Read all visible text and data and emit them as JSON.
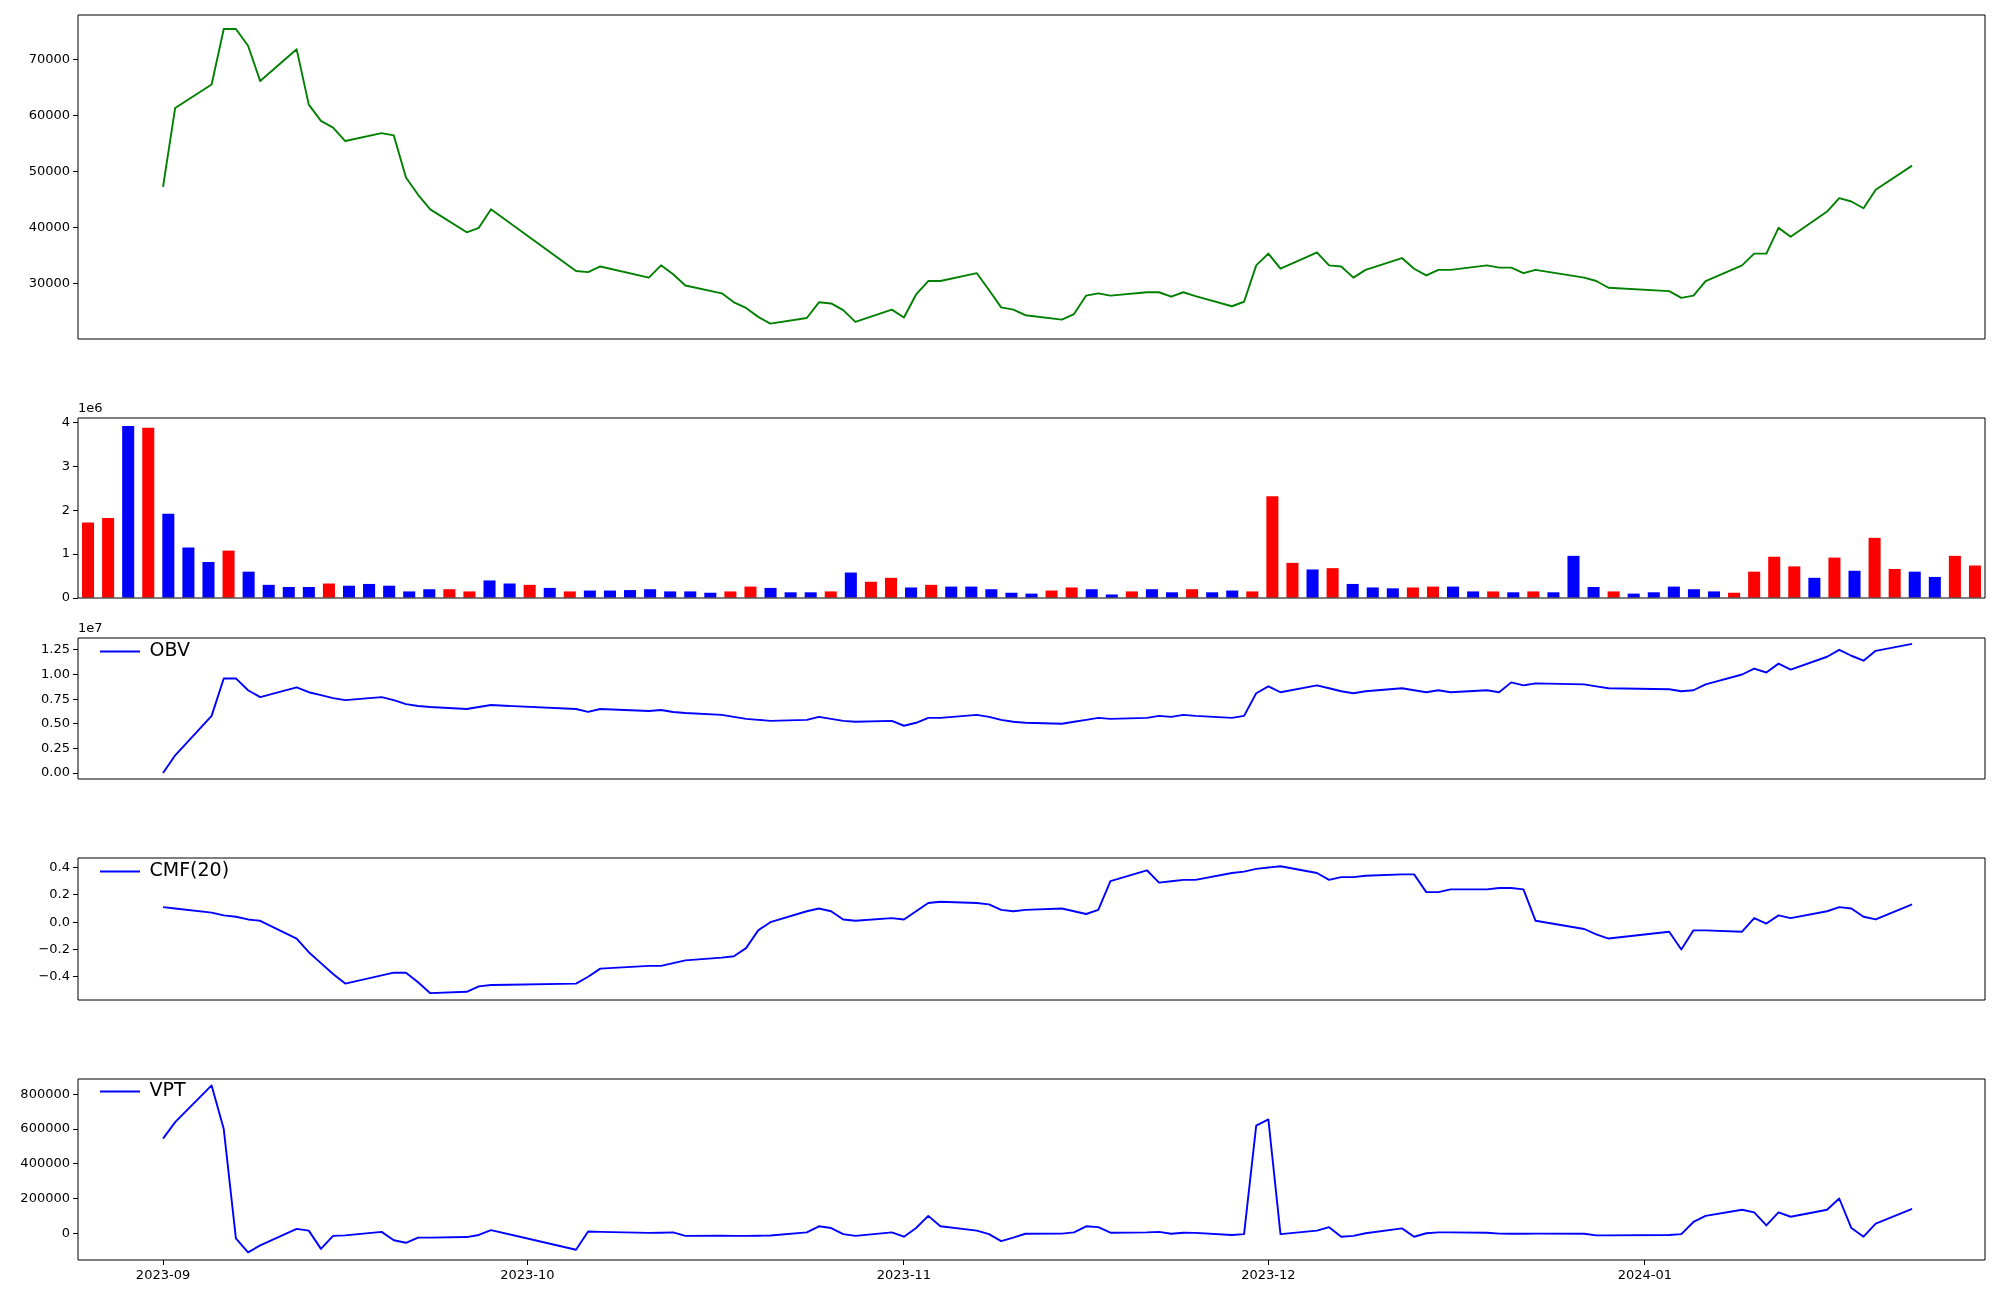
{
  "chart_data": [
    {
      "type": "line",
      "xlim": [
        "2023-08-25",
        "2024-01-29"
      ],
      "ylim": [
        20050,
        77900
      ],
      "yticks": [
        30000,
        40000,
        50000,
        60000,
        70000
      ],
      "tick_labels": "y",
      "x": [
        "2023-09-01",
        "2023-09-02",
        "2023-09-05",
        "2023-09-06",
        "2023-09-07",
        "2023-09-08",
        "2023-09-09",
        "2023-09-12",
        "2023-09-13",
        "2023-09-14",
        "2023-09-15",
        "2023-09-16",
        "2023-09-19",
        "2023-09-20",
        "2023-09-21",
        "2023-09-22",
        "2023-09-23",
        "2023-09-26",
        "2023-09-27",
        "2023-09-28",
        "2023-10-05",
        "2023-10-06",
        "2023-10-07",
        "2023-10-11",
        "2023-10-12",
        "2023-10-13",
        "2023-10-14",
        "2023-10-17",
        "2023-10-18",
        "2023-10-19",
        "2023-10-20",
        "2023-10-21",
        "2023-10-24",
        "2023-10-25",
        "2023-10-26",
        "2023-10-27",
        "2023-10-28",
        "2023-10-31",
        "2023-11-01",
        "2023-11-02",
        "2023-11-03",
        "2023-11-04",
        "2023-11-07",
        "2023-11-08",
        "2023-11-09",
        "2023-11-10",
        "2023-11-11",
        "2023-11-14",
        "2023-11-15",
        "2023-11-16",
        "2023-11-17",
        "2023-11-18",
        "2023-11-21",
        "2023-11-22",
        "2023-11-23",
        "2023-11-24",
        "2023-11-25",
        "2023-11-28",
        "2023-11-29",
        "2023-11-30",
        "2023-12-01",
        "2023-12-02",
        "2023-12-05",
        "2023-12-06",
        "2023-12-07",
        "2023-12-08",
        "2023-12-09",
        "2023-12-12",
        "2023-12-13",
        "2023-12-14",
        "2023-12-15",
        "2023-12-16",
        "2023-12-19",
        "2023-12-20",
        "2023-12-21",
        "2023-12-22",
        "2023-12-23",
        "2023-12-27",
        "2023-12-28",
        "2023-12-29",
        "2024-01-03",
        "2024-01-04",
        "2024-01-05",
        "2024-01-06",
        "2024-01-09",
        "2024-01-10",
        "2024-01-11",
        "2024-01-12",
        "2024-01-13",
        "2024-01-16",
        "2024-01-17",
        "2024-01-18",
        "2024-01-19",
        "2024-01-20",
        "2024-01-23"
      ],
      "series": [
        {
          "color": "#008000",
          "values": [
            47200,
            61300,
            65500,
            75400,
            75400,
            72400,
            66100,
            71800,
            61900,
            59000,
            57800,
            55400,
            56800,
            56400,
            48900,
            45800,
            43200,
            39100,
            39900,
            43200,
            32200,
            32000,
            33000,
            31000,
            33200,
            31600,
            29600,
            28200,
            26600,
            25600,
            24000,
            22800,
            23800,
            26600,
            26400,
            25200,
            23100,
            25300,
            23900,
            28000,
            30400,
            30400,
            31800,
            28800,
            25700,
            25300,
            24300,
            23500,
            24500,
            27800,
            28200,
            27800,
            28400,
            28400,
            27600,
            28400,
            27700,
            25900,
            26700,
            33200,
            35300,
            32600,
            35500,
            33200,
            33000,
            31000,
            32400,
            34500,
            32600,
            31400,
            32400,
            32400,
            33200,
            32800,
            32800,
            31800,
            32400,
            31000,
            30400,
            29200,
            28600,
            27400,
            27800,
            30400,
            33200,
            35300,
            35300,
            39900,
            38300,
            42800,
            45200,
            44600,
            43400,
            46700,
            51000
          ]
        }
      ]
    },
    {
      "type": "bar",
      "tick_labels": "y",
      "ylim": [
        0,
        4.1
      ],
      "yticks": [
        0,
        1,
        2,
        3,
        4
      ],
      "annotations": [
        "1e6"
      ],
      "categories": [
        null,
        null,
        null,
        null,
        null,
        null,
        null,
        null,
        null,
        null,
        null,
        null,
        null,
        null,
        null,
        null,
        null,
        null,
        null,
        null,
        null,
        null,
        null,
        null,
        null,
        null,
        null,
        null,
        null,
        null,
        null,
        null,
        null,
        null,
        null,
        null,
        null,
        null,
        null,
        null,
        null,
        null,
        null,
        null,
        null,
        null,
        null,
        null,
        null,
        null,
        null,
        null,
        null,
        null,
        null,
        null,
        null,
        null,
        null,
        null,
        null,
        null,
        null,
        null,
        null,
        null,
        null,
        null,
        null,
        null,
        null,
        null,
        null,
        null,
        null,
        null,
        null,
        null,
        null,
        null,
        null,
        null,
        null,
        null,
        null,
        null,
        null,
        null,
        null,
        null,
        null,
        null,
        null,
        null,
        null
      ],
      "values": [
        1.72,
        1.82,
        3.92,
        3.88,
        1.92,
        1.15,
        0.82,
        1.08,
        0.6,
        0.3,
        0.25,
        0.25,
        0.33,
        0.28,
        0.32,
        0.28,
        0.15,
        0.2,
        0.2,
        0.15,
        0.4,
        0.33,
        0.3,
        0.23,
        0.15,
        0.17,
        0.17,
        0.18,
        0.2,
        0.15,
        0.15,
        0.12,
        0.15,
        0.26,
        0.23,
        0.13,
        0.13,
        0.15,
        0.58,
        0.37,
        0.46,
        0.24,
        0.3,
        0.26,
        0.26,
        0.2,
        0.12,
        0.1,
        0.17,
        0.24,
        0.2,
        0.08,
        0.15,
        0.2,
        0.13,
        0.2,
        0.13,
        0.17,
        0.15,
        2.32,
        0.8,
        0.65,
        0.68,
        0.32,
        0.24,
        0.22,
        0.24,
        0.26,
        0.26,
        0.15,
        0.15,
        0.13,
        0.15,
        0.13,
        0.96,
        0.25,
        0.15,
        0.1,
        0.13,
        0.26,
        0.2,
        0.15,
        0.12,
        0.6,
        0.94,
        0.72,
        0.46,
        0.92,
        0.62,
        1.37,
        0.66,
        0.6,
        0.48,
        0.96,
        0.74
      ],
      "colors": [
        "#ff0000",
        "#ff0000",
        "#0000ff",
        "#ff0000",
        "#0000ff",
        "#0000ff",
        "#0000ff",
        "#ff0000",
        "#0000ff",
        "#0000ff",
        "#0000ff",
        "#0000ff",
        "#ff0000",
        "#0000ff",
        "#0000ff",
        "#0000ff",
        "#0000ff",
        "#0000ff",
        "#ff0000",
        "#ff0000",
        "#0000ff",
        "#0000ff",
        "#ff0000",
        "#0000ff",
        "#ff0000",
        "#0000ff",
        "#0000ff",
        "#0000ff",
        "#0000ff",
        "#0000ff",
        "#0000ff",
        "#0000ff",
        "#ff0000",
        "#ff0000",
        "#0000ff",
        "#0000ff",
        "#0000ff",
        "#ff0000",
        "#0000ff",
        "#ff0000",
        "#ff0000",
        "#0000ff",
        "#ff0000",
        "#0000ff",
        "#0000ff",
        "#0000ff",
        "#0000ff",
        "#0000ff",
        "#ff0000",
        "#ff0000",
        "#0000ff",
        "#0000ff",
        "#ff0000",
        "#0000ff",
        "#0000ff",
        "#ff0000",
        "#0000ff",
        "#0000ff",
        "#ff0000",
        "#ff0000",
        "#ff0000",
        "#0000ff",
        "#ff0000",
        "#0000ff",
        "#0000ff",
        "#0000ff",
        "#ff0000",
        "#ff0000",
        "#0000ff",
        "#0000ff",
        "#ff0000",
        "#0000ff",
        "#ff0000",
        "#0000ff",
        "#0000ff",
        "#0000ff",
        "#ff0000",
        "#0000ff",
        "#0000ff",
        "#0000ff",
        "#0000ff",
        "#0000ff",
        "#ff0000",
        "#ff0000",
        "#ff0000",
        "#ff0000",
        "#0000ff",
        "#ff0000",
        "#0000ff",
        "#ff0000",
        "#ff0000",
        "#0000ff",
        "#0000ff",
        "#ff0000",
        "#ff0000"
      ]
    },
    {
      "type": "line",
      "xlim": [
        "2023-08-25",
        "2024-01-29"
      ],
      "ylim": [
        -0.06,
        1.37
      ],
      "yticks": [
        {
          "value": 0,
          "label": "0.00"
        },
        0.25,
        {
          "value": 0.5,
          "label": "0.50"
        },
        0.75,
        {
          "value": 1,
          "label": "1.00"
        },
        1.25
      ],
      "tick_labels": "y",
      "legend": "top left",
      "annotations": [
        "1e7"
      ],
      "x": [
        "2023-09-01",
        "2023-09-02",
        "2023-09-05",
        "2023-09-06",
        "2023-09-07",
        "2023-09-08",
        "2023-09-09",
        "2023-09-12",
        "2023-09-13",
        "2023-09-14",
        "2023-09-15",
        "2023-09-16",
        "2023-09-19",
        "2023-09-20",
        "2023-09-21",
        "2023-09-22",
        "2023-09-23",
        "2023-09-26",
        "2023-09-27",
        "2023-09-28",
        "2023-10-05",
        "2023-10-06",
        "2023-10-07",
        "2023-10-11",
        "2023-10-12",
        "2023-10-13",
        "2023-10-14",
        "2023-10-17",
        "2023-10-18",
        "2023-10-19",
        "2023-10-20",
        "2023-10-21",
        "2023-10-24",
        "2023-10-25",
        "2023-10-26",
        "2023-10-27",
        "2023-10-28",
        "2023-10-31",
        "2023-11-01",
        "2023-11-02",
        "2023-11-03",
        "2023-11-04",
        "2023-11-07",
        "2023-11-08",
        "2023-11-09",
        "2023-11-10",
        "2023-11-11",
        "2023-11-14",
        "2023-11-15",
        "2023-11-16",
        "2023-11-17",
        "2023-11-18",
        "2023-11-21",
        "2023-11-22",
        "2023-11-23",
        "2023-11-24",
        "2023-11-25",
        "2023-11-28",
        "2023-11-29",
        "2023-11-30",
        "2023-12-01",
        "2023-12-02",
        "2023-12-05",
        "2023-12-06",
        "2023-12-07",
        "2023-12-08",
        "2023-12-09",
        "2023-12-12",
        "2023-12-13",
        "2023-12-14",
        "2023-12-15",
        "2023-12-16",
        "2023-12-19",
        "2023-12-20",
        "2023-12-21",
        "2023-12-22",
        "2023-12-23",
        "2023-12-27",
        "2023-12-28",
        "2023-12-29",
        "2024-01-03",
        "2024-01-04",
        "2024-01-05",
        "2024-01-06",
        "2024-01-09",
        "2024-01-10",
        "2024-01-11",
        "2024-01-12",
        "2024-01-13",
        "2024-01-16",
        "2024-01-17",
        "2024-01-18",
        "2024-01-19",
        "2024-01-20",
        "2024-01-23"
      ],
      "series": [
        {
          "name": "OBV",
          "color": "#0000ff",
          "values": [
            0,
            0.18,
            0.58,
            0.96,
            0.96,
            0.84,
            0.77,
            0.87,
            0.82,
            0.79,
            0.76,
            0.74,
            0.77,
            0.74,
            0.7,
            0.68,
            0.67,
            0.65,
            0.67,
            0.69,
            0.65,
            0.62,
            0.65,
            0.63,
            0.64,
            0.62,
            0.61,
            0.59,
            0.57,
            0.55,
            0.54,
            0.53,
            0.54,
            0.57,
            0.55,
            0.53,
            0.52,
            0.53,
            0.48,
            0.51,
            0.56,
            0.56,
            0.59,
            0.57,
            0.54,
            0.52,
            0.51,
            0.5,
            0.52,
            0.54,
            0.56,
            0.55,
            0.56,
            0.58,
            0.57,
            0.59,
            0.58,
            0.56,
            0.58,
            0.81,
            0.88,
            0.82,
            0.89,
            0.86,
            0.83,
            0.81,
            0.83,
            0.86,
            0.84,
            0.82,
            0.84,
            0.82,
            0.84,
            0.82,
            0.92,
            0.89,
            0.91,
            0.9,
            0.88,
            0.86,
            0.85,
            0.83,
            0.84,
            0.9,
            1.0,
            1.06,
            1.02,
            1.11,
            1.05,
            1.18,
            1.25,
            1.19,
            1.14,
            1.24,
            1.31
          ]
        }
      ]
    },
    {
      "type": "line",
      "xlim": [
        "2023-08-25",
        "2024-01-29"
      ],
      "ylim": [
        -0.57,
        0.47
      ],
      "yticks": [
        {
          "value": -0.4,
          "label": "−0.4"
        },
        {
          "value": -0.2,
          "label": "−0.2"
        },
        {
          "value": 0,
          "label": "0.0"
        },
        0.2,
        0.4
      ],
      "tick_labels": "y",
      "legend": "top left",
      "x": [
        "2023-09-01",
        "2023-09-02",
        "2023-09-05",
        "2023-09-06",
        "2023-09-07",
        "2023-09-08",
        "2023-09-09",
        "2023-09-12",
        "2023-09-13",
        "2023-09-14",
        "2023-09-15",
        "2023-09-16",
        "2023-09-19",
        "2023-09-20",
        "2023-09-21",
        "2023-09-22",
        "2023-09-23",
        "2023-09-26",
        "2023-09-27",
        "2023-09-28",
        "2023-10-05",
        "2023-10-06",
        "2023-10-07",
        "2023-10-11",
        "2023-10-12",
        "2023-10-13",
        "2023-10-14",
        "2023-10-17",
        "2023-10-18",
        "2023-10-19",
        "2023-10-20",
        "2023-10-21",
        "2023-10-24",
        "2023-10-25",
        "2023-10-26",
        "2023-10-27",
        "2023-10-28",
        "2023-10-31",
        "2023-11-01",
        "2023-11-02",
        "2023-11-03",
        "2023-11-04",
        "2023-11-07",
        "2023-11-08",
        "2023-11-09",
        "2023-11-10",
        "2023-11-11",
        "2023-11-14",
        "2023-11-15",
        "2023-11-16",
        "2023-11-17",
        "2023-11-18",
        "2023-11-21",
        "2023-11-22",
        "2023-11-23",
        "2023-11-24",
        "2023-11-25",
        "2023-11-28",
        "2023-11-29",
        "2023-11-30",
        "2023-12-01",
        "2023-12-02",
        "2023-12-05",
        "2023-12-06",
        "2023-12-07",
        "2023-12-08",
        "2023-12-09",
        "2023-12-12",
        "2023-12-13",
        "2023-12-14",
        "2023-12-15",
        "2023-12-16",
        "2023-12-19",
        "2023-12-20",
        "2023-12-21",
        "2023-12-22",
        "2023-12-23",
        "2023-12-27",
        "2023-12-28",
        "2023-12-29",
        "2024-01-03",
        "2024-01-04",
        "2024-01-05",
        "2024-01-06",
        "2024-01-09",
        "2024-01-10",
        "2024-01-11",
        "2024-01-12",
        "2024-01-13",
        "2024-01-16",
        "2024-01-17",
        "2024-01-18",
        "2024-01-19",
        "2024-01-20",
        "2024-01-23"
      ],
      "series": [
        {
          "name": "CMF(20)",
          "color": "#0000ff",
          "values": [
            0.11,
            0.1,
            0.07,
            0.05,
            0.04,
            0.02,
            0.01,
            -0.12,
            -0.22,
            -0.3,
            -0.38,
            -0.45,
            -0.39,
            -0.37,
            -0.37,
            -0.44,
            -0.52,
            -0.51,
            -0.47,
            -0.46,
            -0.45,
            -0.4,
            -0.34,
            -0.32,
            -0.32,
            -0.3,
            -0.28,
            -0.26,
            -0.25,
            -0.19,
            -0.06,
            0.0,
            0.08,
            0.1,
            0.08,
            0.02,
            0.01,
            0.03,
            0.02,
            0.08,
            0.14,
            0.15,
            0.14,
            0.13,
            0.09,
            0.08,
            0.09,
            0.1,
            0.08,
            0.06,
            0.09,
            0.3,
            0.38,
            0.29,
            0.3,
            0.31,
            0.31,
            0.36,
            0.37,
            0.39,
            0.4,
            0.41,
            0.36,
            0.31,
            0.33,
            0.33,
            0.34,
            0.35,
            0.35,
            0.22,
            0.22,
            0.24,
            0.24,
            0.25,
            0.25,
            0.24,
            0.01,
            -0.05,
            -0.09,
            -0.12,
            -0.07,
            -0.2,
            -0.06,
            -0.06,
            -0.07,
            0.03,
            -0.01,
            0.05,
            0.03,
            0.08,
            0.11,
            0.1,
            0.04,
            0.02,
            0.13
          ]
        }
      ]
    },
    {
      "type": "line",
      "xlim": [
        "2023-08-25",
        "2024-01-29"
      ],
      "ylim": [
        -154000,
        888000
      ],
      "yticks": [
        0,
        200000,
        400000,
        600000,
        800000
      ],
      "xticks": [
        {
          "value": "2023-09-01",
          "label": "2023-09"
        },
        {
          "value": "2023-10-01",
          "label": "2023-10"
        },
        {
          "value": "2023-11-01",
          "label": "2023-11"
        },
        {
          "value": "2023-12-01",
          "label": "2023-12"
        },
        {
          "value": "2024-01-01",
          "label": "2024-01"
        }
      ],
      "legend": "top left",
      "x": [
        "2023-09-01",
        "2023-09-02",
        "2023-09-05",
        "2023-09-06",
        "2023-09-07",
        "2023-09-08",
        "2023-09-09",
        "2023-09-12",
        "2023-09-13",
        "2023-09-14",
        "2023-09-15",
        "2023-09-16",
        "2023-09-19",
        "2023-09-20",
        "2023-09-21",
        "2023-09-22",
        "2023-09-23",
        "2023-09-26",
        "2023-09-27",
        "2023-09-28",
        "2023-10-05",
        "2023-10-06",
        "2023-10-07",
        "2023-10-11",
        "2023-10-12",
        "2023-10-13",
        "2023-10-14",
        "2023-10-17",
        "2023-10-18",
        "2023-10-19",
        "2023-10-20",
        "2023-10-21",
        "2023-10-24",
        "2023-10-25",
        "2023-10-26",
        "2023-10-27",
        "2023-10-28",
        "2023-10-31",
        "2023-11-01",
        "2023-11-02",
        "2023-11-03",
        "2023-11-04",
        "2023-11-07",
        "2023-11-08",
        "2023-11-09",
        "2023-11-10",
        "2023-11-11",
        "2023-11-14",
        "2023-11-15",
        "2023-11-16",
        "2023-11-17",
        "2023-11-18",
        "2023-11-21",
        "2023-11-22",
        "2023-11-23",
        "2023-11-24",
        "2023-11-25",
        "2023-11-28",
        "2023-11-29",
        "2023-11-30",
        "2023-12-01",
        "2023-12-02",
        "2023-12-05",
        "2023-12-06",
        "2023-12-07",
        "2023-12-08",
        "2023-12-09",
        "2023-12-12",
        "2023-12-13",
        "2023-12-14",
        "2023-12-15",
        "2023-12-16",
        "2023-12-19",
        "2023-12-20",
        "2023-12-21",
        "2023-12-22",
        "2023-12-23",
        "2023-12-27",
        "2023-12-28",
        "2023-12-29",
        "2024-01-03",
        "2024-01-04",
        "2024-01-05",
        "2024-01-06",
        "2024-01-09",
        "2024-01-10",
        "2024-01-11",
        "2024-01-12",
        "2024-01-13",
        "2024-01-16",
        "2024-01-17",
        "2024-01-18",
        "2024-01-19",
        "2024-01-20",
        "2024-01-23"
      ],
      "series": [
        {
          "name": "VPT",
          "color": "#0000ff",
          "values": [
            545000,
            640000,
            851000,
            600000,
            -30000,
            -110000,
            -70000,
            25000,
            15000,
            -90000,
            -15000,
            -12000,
            8000,
            -40000,
            -55000,
            -25000,
            -25000,
            -22000,
            -10000,
            18000,
            -95000,
            10000,
            8000,
            2000,
            3000,
            5000,
            -15000,
            -14000,
            -15000,
            -15000,
            -14000,
            -13000,
            5000,
            40000,
            30000,
            -5000,
            -15000,
            5000,
            -20000,
            30000,
            100000,
            40000,
            15000,
            -5000,
            -45000,
            -25000,
            -3000,
            -2000,
            5000,
            40000,
            35000,
            3000,
            5000,
            8000,
            -3000,
            3000,
            2000,
            -10000,
            -5000,
            620000,
            655000,
            -5000,
            15000,
            35000,
            -20000,
            -15000,
            0,
            28000,
            -20000,
            0,
            5000,
            5000,
            3000,
            -2000,
            -3000,
            -3000,
            -2000,
            -3000,
            -12000,
            -12000,
            -10000,
            -5000,
            65000,
            100000,
            135000,
            120000,
            45000,
            120000,
            95000,
            135000,
            200000,
            30000,
            -20000,
            55000,
            140000
          ]
        }
      ]
    }
  ]
}
